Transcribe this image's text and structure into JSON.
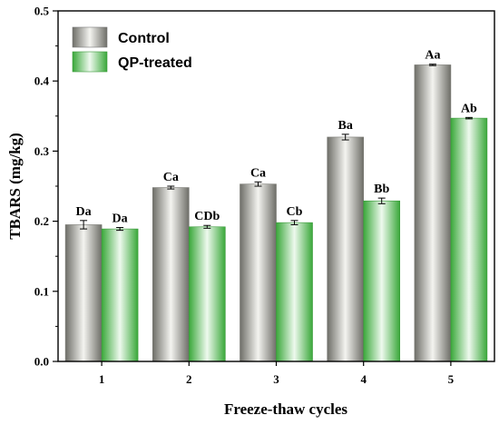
{
  "chart_data": {
    "type": "bar",
    "title": "",
    "xlabel": "Freeze-thaw cycles",
    "ylabel": "TBARS (mg/kg)",
    "categories": [
      "1",
      "2",
      "3",
      "4",
      "5"
    ],
    "ylim": [
      0,
      0.5
    ],
    "yticks": [
      "0.0",
      "0.1",
      "0.2",
      "0.3",
      "0.4",
      "0.5"
    ],
    "legend_position": "top-left",
    "grid": false,
    "series": [
      {
        "name": "Control",
        "color": "#9a9a92",
        "values": [
          0.195,
          0.248,
          0.253,
          0.32,
          0.423
        ],
        "errors": [
          0.006,
          0.002,
          0.003,
          0.004,
          0.001
        ],
        "labels": [
          "Da",
          "Ca",
          "Ca",
          "Ba",
          "Aa"
        ]
      },
      {
        "name": "QP-treated",
        "color": "#5ec25e",
        "values": [
          0.189,
          0.192,
          0.198,
          0.229,
          0.347
        ],
        "errors": [
          0.002,
          0.002,
          0.003,
          0.004,
          0.001
        ],
        "labels": [
          "Da",
          "CDb",
          "Cb",
          "Bb",
          "Ab"
        ]
      }
    ]
  }
}
